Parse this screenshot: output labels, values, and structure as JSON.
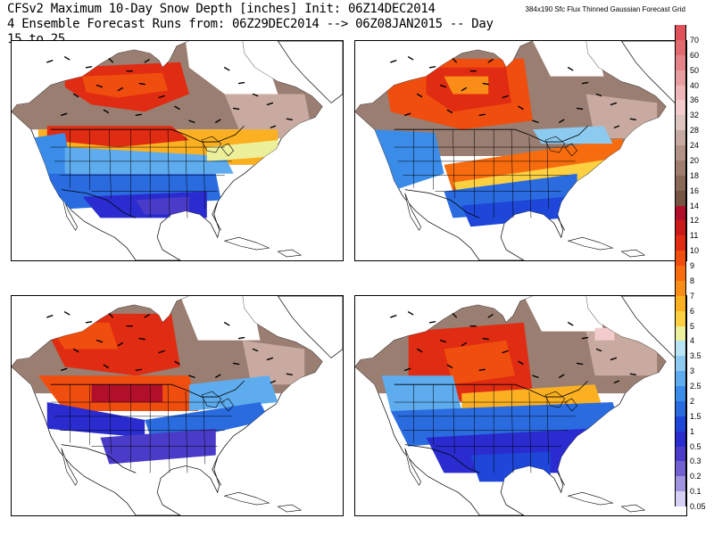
{
  "header": {
    "line1": "CFSv2 Maximum 10-Day Snow Depth [inches] Init: 06Z14DEC2014",
    "line2": "4 Ensemble Forecast Runs from: 06Z29DEC2014 --> 06Z08JAN2015 -- Day 15 to 25",
    "grid_note": "384x190 Sfc Flux Thinned Gaussian Forecast Grid"
  },
  "legend": {
    "entries": [
      {
        "label": "70",
        "color": "#e0505a"
      },
      {
        "label": "60",
        "color": "#e06a6e"
      },
      {
        "label": "50",
        "color": "#e48488"
      },
      {
        "label": "40",
        "color": "#e89ea0"
      },
      {
        "label": "36",
        "color": "#eeb6b8"
      },
      {
        "label": "32",
        "color": "#f2cccc"
      },
      {
        "label": "28",
        "color": "#dcc4c0"
      },
      {
        "label": "24",
        "color": "#c6aaa2"
      },
      {
        "label": "20",
        "color": "#b29286"
      },
      {
        "label": "18",
        "color": "#9e7c6e"
      },
      {
        "label": "16",
        "color": "#8a6858"
      },
      {
        "label": "14",
        "color": "#765444"
      },
      {
        "label": "12",
        "color": "#b2102a"
      },
      {
        "label": "11",
        "color": "#cc1a1a"
      },
      {
        "label": "10",
        "color": "#e02c12"
      },
      {
        "label": "9",
        "color": "#f04e0e"
      },
      {
        "label": "8",
        "color": "#f86c10"
      },
      {
        "label": "7",
        "color": "#fa8c18"
      },
      {
        "label": "6",
        "color": "#fbb022"
      },
      {
        "label": "5",
        "color": "#fcd040"
      },
      {
        "label": "4",
        "color": "#ecf09a"
      },
      {
        "label": "3.5",
        "color": "#b8e4f4"
      },
      {
        "label": "3",
        "color": "#8ccaf0"
      },
      {
        "label": "2.5",
        "color": "#5eacee"
      },
      {
        "label": "2",
        "color": "#3a8ce8"
      },
      {
        "label": "1.5",
        "color": "#2a6ce0"
      },
      {
        "label": "1",
        "color": "#1e46d8"
      },
      {
        "label": "0.5",
        "color": "#2a2cd0"
      },
      {
        "label": "0.3",
        "color": "#4a3cc8"
      },
      {
        "label": "0.2",
        "color": "#7060d0"
      },
      {
        "label": "0.1",
        "color": "#a094e0"
      },
      {
        "label": "0.05",
        "color": "#d6d0f4"
      }
    ]
  },
  "colors": {
    "background": "#ffffff",
    "outline": "#000000",
    "deep_snow_brown": "#9a7e72",
    "pink_snow": "#eecfd0"
  }
}
